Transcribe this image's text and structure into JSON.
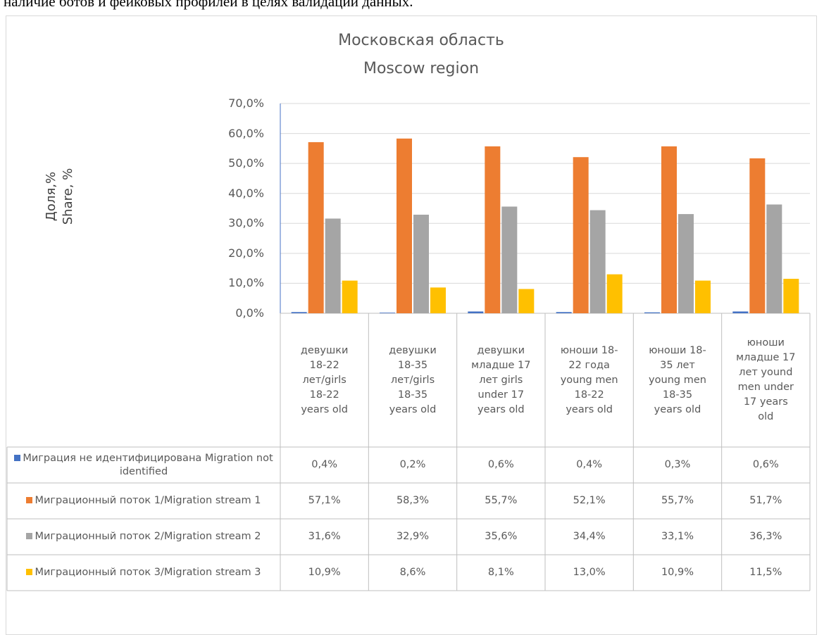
{
  "caption": "наличие ботов и фейковых профилей в целях валидации данных.",
  "chart_data": {
    "type": "bar",
    "title": "Московская область",
    "subtitle": "Moscow region",
    "y_label": "Доля,%\nShare, %",
    "categories": [
      "девушки 18-22 лет/girls 18-22 years old",
      "девушки 18-35 лет/girls 18-35 years old",
      "девушки младше 17 лет girls under 17 years old",
      "юноши 18-22 года young men 18-22 years old",
      "юноши 18-35 лет young men 18-35 years old",
      "юноши младше 17 лет yound men under 17 years old"
    ],
    "series": [
      {
        "name": "Миграция не идентифицирована Migration not identified",
        "color": "#4472c4",
        "values": [
          0.4,
          0.2,
          0.6,
          0.4,
          0.3,
          0.6
        ],
        "value_labels": [
          "0,4%",
          "0,2%",
          "0,6%",
          "0,4%",
          "0,3%",
          "0,6%"
        ]
      },
      {
        "name": "Миграционный поток 1/Migration stream 1",
        "color": "#ed7d31",
        "values": [
          57.1,
          58.3,
          55.7,
          52.1,
          55.7,
          51.7
        ],
        "value_labels": [
          "57,1%",
          "58,3%",
          "55,7%",
          "52,1%",
          "55,7%",
          "51,7%"
        ]
      },
      {
        "name": "Миграционный поток 2/Migration stream 2",
        "color": "#a5a5a5",
        "values": [
          31.6,
          32.9,
          35.6,
          34.4,
          33.1,
          36.3
        ],
        "value_labels": [
          "31,6%",
          "32,9%",
          "35,6%",
          "34,4%",
          "33,1%",
          "36,3%"
        ]
      },
      {
        "name": "Миграционный поток 3/Migration stream 3",
        "color": "#ffc000",
        "values": [
          10.9,
          8.6,
          8.1,
          13.0,
          10.9,
          11.5
        ],
        "value_labels": [
          "10,9%",
          "8,6%",
          "8,1%",
          "13,0%",
          "10,9%",
          "11,5%"
        ]
      }
    ],
    "ylim": [
      0,
      70
    ],
    "yticks": [
      {
        "value": 0,
        "label": "0,0%"
      },
      {
        "value": 10,
        "label": "10,0%"
      },
      {
        "value": 20,
        "label": "20,0%"
      },
      {
        "value": 30,
        "label": "30,0%"
      },
      {
        "value": 40,
        "label": "40,0%"
      },
      {
        "value": 50,
        "label": "50,0%"
      },
      {
        "value": 60,
        "label": "60,0%"
      },
      {
        "value": 70,
        "label": "70,0%"
      }
    ],
    "grid": true
  }
}
